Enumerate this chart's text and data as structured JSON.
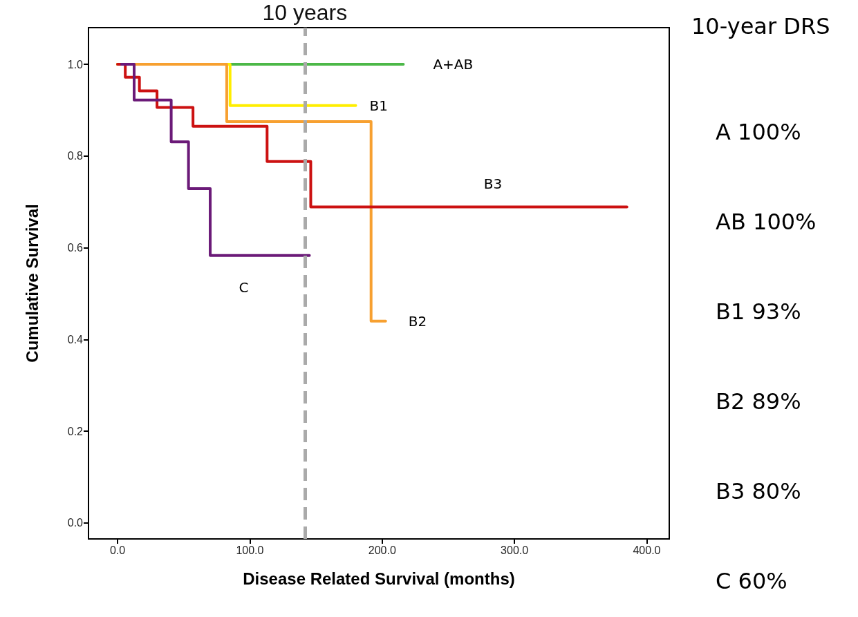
{
  "chart_data": {
    "type": "step",
    "xlabel": "Disease Related Survival (months)",
    "ylabel": "Cumulative Survival",
    "xlim": [
      -22,
      417
    ],
    "ylim": [
      -0.035,
      1.08
    ],
    "xticks": [
      {
        "value": 0,
        "label": "0.0"
      },
      {
        "value": 100,
        "label": "100.0"
      },
      {
        "value": 200,
        "label": "200.0"
      },
      {
        "value": 300,
        "label": "300.0"
      },
      {
        "value": 400,
        "label": "400.0"
      }
    ],
    "yticks": [
      {
        "value": 0,
        "label": "0.0"
      },
      {
        "value": 0.2,
        "label": "0.2"
      },
      {
        "value": 0.4,
        "label": "0.4"
      },
      {
        "value": 0.6,
        "label": "0.6"
      },
      {
        "value": 0.8,
        "label": "0.8"
      },
      {
        "value": 1,
        "label": "1.0"
      }
    ],
    "grid": false,
    "marker": "none",
    "line_style": "solid",
    "series": [
      {
        "name": "A+AB",
        "color": "#4cb848",
        "x": [
          0,
          216
        ],
        "values": [
          1,
          1
        ]
      },
      {
        "name": "B1",
        "color": "#ffee00",
        "x": [
          0,
          85,
          180
        ],
        "values": [
          1,
          0.91,
          0.91
        ]
      },
      {
        "name": "B2",
        "color": "#f7a030",
        "x": [
          0,
          82.5,
          191.6,
          202.6
        ],
        "values": [
          1,
          0.875,
          0.44,
          0.44
        ]
      },
      {
        "name": "B3",
        "color": "#cc1111",
        "x": [
          0,
          5.8,
          16.5,
          29.8,
          57,
          113,
          146,
          385
        ],
        "values": [
          1,
          0.972,
          0.942,
          0.906,
          0.865,
          0.788,
          0.689,
          0.689
        ]
      },
      {
        "name": "C",
        "color": "#6b1a78",
        "x": [
          3,
          12.5,
          40.5,
          53.6,
          70,
          145
        ],
        "values": [
          1,
          0.922,
          0.831,
          0.729,
          0.583,
          0.583
        ]
      }
    ],
    "ref_lines": [
      {
        "axis": "x",
        "value": 141.5,
        "label": "10 years",
        "color": "#aaaaaa",
        "line_style": "dashed"
      }
    ],
    "annotations": [
      "10-year DRS",
      "A 100%",
      "AB 100%",
      "B1 93%",
      "B2 89%",
      "B3 80%",
      "C 60%"
    ]
  }
}
